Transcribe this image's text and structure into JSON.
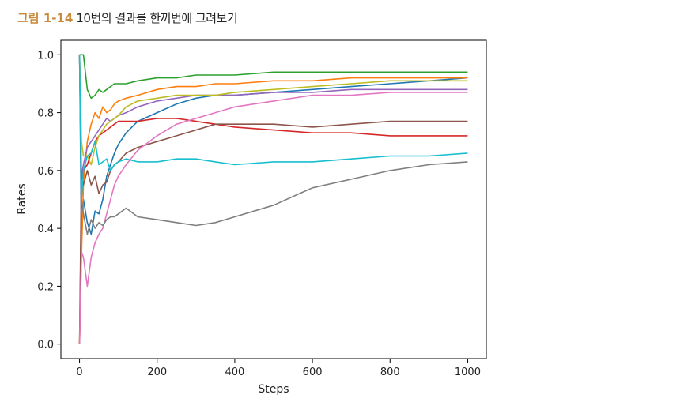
{
  "caption": {
    "label": "그림 1-14",
    "text": "10번의 결과를 한꺼번에 그려보기"
  },
  "chart_data": {
    "type": "line",
    "xlabel": "Steps",
    "ylabel": "Rates",
    "xlim": [
      -48,
      1048
    ],
    "ylim": [
      -0.05,
      1.05
    ],
    "xticks": [
      0,
      200,
      400,
      600,
      800,
      1000
    ],
    "yticks": [
      0.0,
      0.2,
      0.4,
      0.6,
      0.8,
      1.0
    ],
    "xtick_labels": [
      "0",
      "200",
      "400",
      "600",
      "800",
      "1000"
    ],
    "ytick_labels": [
      "0.0",
      "0.2",
      "0.4",
      "0.6",
      "0.8",
      "1.0"
    ],
    "grid": false,
    "legend": "none",
    "x": [
      0,
      5,
      10,
      20,
      30,
      40,
      50,
      60,
      70,
      80,
      90,
      100,
      120,
      150,
      200,
      250,
      300,
      350,
      400,
      500,
      600,
      700,
      800,
      900,
      1000
    ],
    "series": [
      {
        "color": "#1f77b4",
        "values": [
          1.0,
          0.35,
          0.5,
          0.42,
          0.38,
          0.46,
          0.45,
          0.5,
          0.58,
          0.62,
          0.66,
          0.69,
          0.73,
          0.77,
          0.8,
          0.83,
          0.85,
          0.86,
          0.86,
          0.87,
          0.88,
          0.89,
          0.9,
          0.91,
          0.92
        ]
      },
      {
        "color": "#ff7f0e",
        "values": [
          0.0,
          0.3,
          0.55,
          0.7,
          0.76,
          0.8,
          0.78,
          0.82,
          0.8,
          0.81,
          0.83,
          0.84,
          0.85,
          0.86,
          0.88,
          0.89,
          0.89,
          0.9,
          0.9,
          0.91,
          0.91,
          0.92,
          0.92,
          0.92,
          0.92
        ]
      },
      {
        "color": "#2ca02c",
        "values": [
          1.0,
          1.0,
          1.0,
          0.88,
          0.85,
          0.86,
          0.88,
          0.87,
          0.88,
          0.89,
          0.9,
          0.9,
          0.9,
          0.91,
          0.92,
          0.92,
          0.93,
          0.93,
          0.93,
          0.94,
          0.94,
          0.94,
          0.94,
          0.94,
          0.94
        ]
      },
      {
        "color": "#d62728",
        "values": [
          0.0,
          0.5,
          0.6,
          0.62,
          0.66,
          0.7,
          0.72,
          0.73,
          0.74,
          0.75,
          0.76,
          0.77,
          0.77,
          0.77,
          0.78,
          0.78,
          0.77,
          0.76,
          0.75,
          0.74,
          0.73,
          0.73,
          0.72,
          0.72,
          0.72
        ]
      },
      {
        "color": "#9467bd",
        "values": [
          1.0,
          0.58,
          0.62,
          0.68,
          0.7,
          0.72,
          0.74,
          0.76,
          0.78,
          0.77,
          0.78,
          0.79,
          0.8,
          0.82,
          0.84,
          0.85,
          0.86,
          0.86,
          0.86,
          0.87,
          0.87,
          0.88,
          0.88,
          0.88,
          0.88
        ]
      },
      {
        "color": "#8c564b",
        "values": [
          0.0,
          0.6,
          0.55,
          0.6,
          0.55,
          0.58,
          0.52,
          0.55,
          0.56,
          0.6,
          0.62,
          0.63,
          0.66,
          0.68,
          0.7,
          0.72,
          0.74,
          0.76,
          0.76,
          0.76,
          0.75,
          0.76,
          0.77,
          0.77,
          0.77
        ]
      },
      {
        "color": "#e377c2",
        "values": [
          0.0,
          0.32,
          0.3,
          0.2,
          0.3,
          0.35,
          0.38,
          0.4,
          0.45,
          0.5,
          0.55,
          0.58,
          0.62,
          0.67,
          0.72,
          0.76,
          0.78,
          0.8,
          0.82,
          0.84,
          0.86,
          0.86,
          0.87,
          0.87,
          0.87
        ]
      },
      {
        "color": "#7f7f7f",
        "values": [
          1.0,
          0.5,
          0.45,
          0.38,
          0.43,
          0.4,
          0.42,
          0.41,
          0.43,
          0.44,
          0.44,
          0.45,
          0.47,
          0.44,
          0.43,
          0.42,
          0.41,
          0.42,
          0.44,
          0.48,
          0.54,
          0.57,
          0.6,
          0.62,
          0.63
        ]
      },
      {
        "color": "#bcbd22",
        "values": [
          1.0,
          0.7,
          0.65,
          0.65,
          0.62,
          0.68,
          0.72,
          0.74,
          0.76,
          0.77,
          0.78,
          0.79,
          0.82,
          0.84,
          0.85,
          0.86,
          0.86,
          0.86,
          0.87,
          0.88,
          0.89,
          0.9,
          0.91,
          0.91,
          0.91
        ]
      },
      {
        "color": "#17becf",
        "values": [
          1.0,
          0.5,
          0.6,
          0.65,
          0.66,
          0.7,
          0.62,
          0.63,
          0.64,
          0.6,
          0.62,
          0.63,
          0.64,
          0.63,
          0.63,
          0.64,
          0.64,
          0.63,
          0.62,
          0.63,
          0.63,
          0.64,
          0.65,
          0.65,
          0.66
        ]
      }
    ]
  }
}
